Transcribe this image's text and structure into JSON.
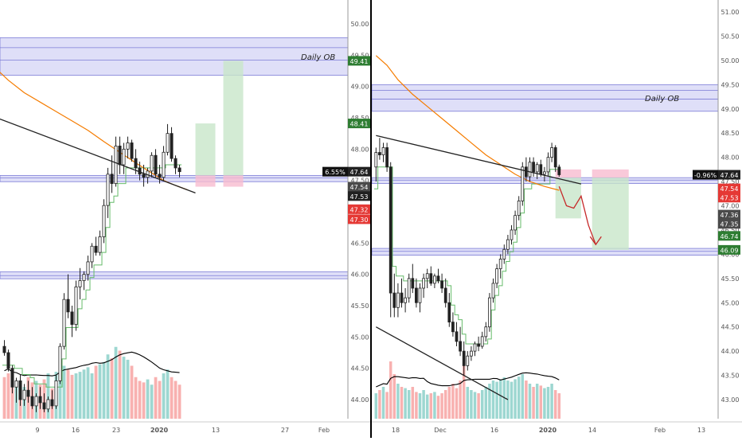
{
  "colors": {
    "up": "#26a69a",
    "down": "#ef5350",
    "ma_orange": "#f57c00",
    "trend_green": "#66bb6a",
    "zone_fill": "#c5c5f2",
    "zone_line": "#7b7bd6",
    "long_green": "#c8e6c9",
    "stop_red": "#f8bbd0",
    "tag_green": "#2e7d32",
    "tag_red": "#e53935",
    "tag_dark": "#212121",
    "tag_gray": "#4a4a4a"
  },
  "chart_data": [
    {
      "type": "candlestick",
      "title": "",
      "zone_label": "Daily OB",
      "y_axis": {
        "range": [
          43.7,
          50.4
        ],
        "ticks": [
          "50.00",
          "49.50",
          "49.00",
          "48.50",
          "48.00",
          "47.50",
          "47.00",
          "46.50",
          "46.00",
          "45.50",
          "45.00",
          "44.50",
          "44.00"
        ]
      },
      "x_axis": {
        "labels": [
          "9",
          "16",
          "23",
          "2020",
          "13",
          "27",
          "Feb"
        ]
      },
      "price_tags": [
        {
          "label": "49.41",
          "value": 49.41,
          "style": "green"
        },
        {
          "label": "48.41",
          "value": 48.41,
          "style": "green"
        },
        {
          "label": "6.55%",
          "value": 47.64,
          "style": "percent"
        },
        {
          "label": "47.64",
          "value": 47.64,
          "style": "dark"
        },
        {
          "label": "47.54",
          "value": 47.54,
          "style": "gray"
        },
        {
          "label": "47.53",
          "value": 47.53,
          "style": "dark"
        },
        {
          "label": "47.32",
          "value": 47.32,
          "style": "red"
        },
        {
          "label": "47.30",
          "value": 47.3,
          "style": "red"
        }
      ],
      "zones": [
        {
          "name": "daily-ob",
          "top": 49.78,
          "bottom": 49.18,
          "lines": [
            49.62,
            49.42
          ]
        },
        {
          "name": "support",
          "top": 47.58,
          "bottom": 47.48,
          "lines": [
            47.54
          ]
        },
        {
          "name": "lower",
          "top": 46.04,
          "bottom": 45.93,
          "lines": [
            45.98
          ]
        }
      ],
      "candles": [
        [
          44.85,
          44.95,
          44.7,
          44.75
        ],
        [
          44.75,
          44.8,
          44.45,
          44.5
        ],
        [
          44.5,
          44.55,
          44.1,
          44.2
        ],
        [
          44.2,
          44.35,
          43.95,
          44.3
        ],
        [
          44.3,
          44.4,
          43.9,
          44.0
        ],
        [
          44.0,
          44.25,
          43.9,
          44.15
        ],
        [
          44.15,
          44.3,
          43.95,
          44.05
        ],
        [
          44.05,
          44.2,
          43.85,
          43.9
        ],
        [
          43.9,
          44.1,
          43.8,
          44.05
        ],
        [
          44.05,
          44.2,
          43.85,
          43.95
        ],
        [
          43.95,
          44.1,
          43.8,
          43.85
        ],
        [
          43.85,
          44.05,
          43.8,
          44.0
        ],
        [
          44.0,
          44.15,
          43.85,
          43.9
        ],
        [
          43.9,
          44.4,
          43.85,
          44.3
        ],
        [
          44.3,
          44.9,
          44.25,
          44.85
        ],
        [
          44.85,
          45.7,
          44.8,
          45.6
        ],
        [
          45.6,
          46.0,
          45.3,
          45.4
        ],
        [
          45.4,
          45.5,
          45.0,
          45.2
        ],
        [
          45.2,
          45.9,
          45.1,
          45.8
        ],
        [
          45.8,
          46.1,
          45.6,
          45.9
        ],
        [
          45.9,
          46.05,
          45.75,
          46.0
        ],
        [
          46.0,
          46.3,
          45.9,
          46.2
        ],
        [
          46.2,
          46.5,
          46.1,
          46.45
        ],
        [
          46.45,
          46.6,
          46.3,
          46.35
        ],
        [
          46.35,
          46.7,
          46.3,
          46.6
        ],
        [
          46.6,
          47.2,
          46.5,
          47.1
        ],
        [
          47.1,
          47.7,
          46.9,
          47.6
        ],
        [
          47.6,
          47.9,
          47.3,
          47.45
        ],
        [
          47.45,
          48.2,
          47.4,
          48.05
        ],
        [
          48.05,
          48.2,
          47.6,
          47.75
        ],
        [
          47.75,
          48.1,
          47.6,
          48.0
        ],
        [
          48.0,
          48.2,
          47.85,
          48.1
        ],
        [
          48.1,
          48.15,
          47.8,
          47.85
        ],
        [
          47.85,
          48.0,
          47.6,
          47.7
        ],
        [
          47.7,
          47.8,
          47.5,
          47.6
        ],
        [
          47.6,
          47.75,
          47.4,
          47.55
        ],
        [
          47.55,
          47.7,
          47.45,
          47.65
        ],
        [
          47.65,
          47.95,
          47.55,
          47.9
        ],
        [
          47.9,
          48.0,
          47.55,
          47.6
        ],
        [
          47.6,
          47.75,
          47.45,
          47.55
        ],
        [
          47.55,
          48.05,
          47.5,
          47.95
        ],
        [
          47.95,
          48.4,
          47.9,
          48.25
        ],
        [
          48.25,
          48.35,
          47.8,
          47.85
        ],
        [
          47.85,
          47.9,
          47.6,
          47.7
        ],
        [
          47.7,
          47.75,
          47.55,
          47.64
        ]
      ],
      "volume": [
        0.55,
        0.6,
        0.45,
        0.5,
        0.4,
        0.42,
        0.55,
        0.48,
        0.5,
        0.45,
        0.52,
        0.6,
        0.4,
        0.62,
        0.8,
        0.7,
        0.65,
        0.58,
        0.6,
        0.62,
        0.65,
        0.68,
        0.6,
        0.7,
        0.72,
        0.75,
        0.85,
        0.8,
        0.95,
        0.9,
        0.82,
        0.78,
        0.7,
        0.55,
        0.5,
        0.48,
        0.52,
        0.45,
        0.55,
        0.5,
        0.6,
        0.65,
        0.55,
        0.5,
        0.45
      ],
      "ma": [
        [
          -4,
          49.4
        ],
        [
          1,
          49.1
        ],
        [
          5,
          48.9
        ],
        [
          9,
          48.75
        ],
        [
          13,
          48.6
        ],
        [
          17,
          48.45
        ],
        [
          21,
          48.3
        ],
        [
          25,
          48.12
        ],
        [
          29,
          47.95
        ],
        [
          33,
          47.78
        ],
        [
          37,
          47.62
        ],
        [
          40,
          47.5
        ],
        [
          43,
          47.42
        ],
        [
          46,
          47.35
        ]
      ],
      "trendline": [
        [
          -4,
          48.55
        ],
        [
          48,
          47.3
        ]
      ],
      "long_setups": [
        {
          "x1": 48,
          "x2": 53,
          "entry": 47.58,
          "target": 48.41,
          "stop": 47.4
        },
        {
          "x1": 55,
          "x2": 60,
          "entry": 47.58,
          "target": 49.41,
          "stop": 47.4
        }
      ]
    },
    {
      "type": "candlestick",
      "title": "",
      "zone_label": "Daily OB",
      "y_axis": {
        "range": [
          43.0,
          51.2
        ],
        "ticks": [
          "51.00",
          "50.50",
          "50.00",
          "49.50",
          "49.00",
          "48.50",
          "48.00",
          "47.50",
          "47.00",
          "46.50",
          "46.00",
          "45.50",
          "45.00",
          "44.50",
          "44.00",
          "43.50",
          "43.00"
        ]
      },
      "x_axis": {
        "labels": [
          "18",
          "Dec",
          "16",
          "2020",
          "14",
          "Feb",
          "13"
        ]
      },
      "price_tags": [
        {
          "label": "-0.96%",
          "value": 47.64,
          "style": "percent"
        },
        {
          "label": "47.64",
          "value": 47.64,
          "style": "dark"
        },
        {
          "label": "47.54",
          "value": 47.54,
          "style": "red"
        },
        {
          "label": "47.53",
          "value": 47.53,
          "style": "red"
        },
        {
          "label": "47.36",
          "value": 47.36,
          "style": "gray"
        },
        {
          "label": "47.35",
          "value": 47.35,
          "style": "gray"
        },
        {
          "label": "46.74",
          "value": 46.74,
          "style": "green"
        },
        {
          "label": "46.09",
          "value": 46.09,
          "style": "green"
        }
      ],
      "zones": [
        {
          "name": "daily-ob",
          "top": 49.5,
          "bottom": 48.95,
          "lines": [
            49.38,
            49.2
          ]
        },
        {
          "name": "support",
          "top": 47.58,
          "bottom": 47.46,
          "lines": [
            47.53
          ]
        },
        {
          "name": "lower",
          "top": 46.12,
          "bottom": 45.98,
          "lines": [
            46.06
          ]
        }
      ],
      "candles": [
        [
          47.8,
          48.2,
          47.5,
          48.1
        ],
        [
          48.1,
          48.4,
          47.95,
          48.05
        ],
        [
          48.05,
          48.3,
          47.9,
          48.2
        ],
        [
          48.2,
          48.3,
          47.7,
          47.8
        ],
        [
          47.8,
          47.9,
          44.7,
          45.2
        ],
        [
          45.2,
          45.6,
          44.7,
          44.9
        ],
        [
          44.9,
          45.4,
          44.7,
          45.2
        ],
        [
          45.2,
          45.5,
          44.9,
          45.0
        ],
        [
          45.0,
          45.3,
          44.8,
          45.1
        ],
        [
          45.1,
          45.6,
          45.0,
          45.5
        ],
        [
          45.5,
          45.8,
          45.2,
          45.3
        ],
        [
          45.3,
          45.5,
          44.9,
          45.0
        ],
        [
          45.0,
          45.4,
          44.8,
          45.3
        ],
        [
          45.3,
          45.6,
          45.1,
          45.5
        ],
        [
          45.5,
          45.7,
          45.3,
          45.6
        ],
        [
          45.6,
          45.75,
          45.35,
          45.4
        ],
        [
          45.4,
          45.6,
          45.3,
          45.55
        ],
        [
          45.55,
          45.7,
          45.4,
          45.45
        ],
        [
          45.45,
          45.6,
          45.2,
          45.3
        ],
        [
          45.3,
          45.5,
          44.9,
          45.0
        ],
        [
          45.0,
          45.2,
          44.5,
          44.6
        ],
        [
          44.6,
          44.8,
          44.3,
          44.4
        ],
        [
          44.4,
          44.6,
          44.1,
          44.2
        ],
        [
          44.2,
          44.5,
          43.9,
          44.0
        ],
        [
          44.0,
          44.2,
          43.5,
          43.7
        ],
        [
          43.7,
          44.0,
          43.6,
          43.9
        ],
        [
          43.9,
          44.1,
          43.8,
          44.0
        ],
        [
          44.0,
          44.2,
          43.9,
          44.15
        ],
        [
          44.15,
          44.3,
          44.0,
          44.1
        ],
        [
          44.1,
          44.4,
          44.05,
          44.3
        ],
        [
          44.3,
          44.6,
          44.2,
          44.5
        ],
        [
          44.5,
          45.2,
          44.4,
          45.1
        ],
        [
          45.1,
          45.5,
          45.0,
          45.4
        ],
        [
          45.4,
          45.8,
          45.3,
          45.7
        ],
        [
          45.7,
          46.0,
          45.5,
          45.9
        ],
        [
          45.9,
          46.2,
          45.8,
          46.1
        ],
        [
          46.1,
          46.4,
          46.0,
          46.3
        ],
        [
          46.3,
          46.6,
          46.2,
          46.5
        ],
        [
          46.5,
          46.9,
          46.4,
          46.8
        ],
        [
          46.8,
          47.2,
          46.7,
          47.1
        ],
        [
          47.1,
          47.9,
          47.0,
          47.8
        ],
        [
          47.8,
          48.0,
          47.5,
          47.6
        ],
        [
          47.6,
          48.0,
          47.5,
          47.9
        ],
        [
          47.9,
          48.0,
          47.6,
          47.7
        ],
        [
          47.7,
          47.9,
          47.55,
          47.85
        ],
        [
          47.85,
          47.95,
          47.6,
          47.65
        ],
        [
          47.65,
          47.8,
          47.5,
          47.7
        ],
        [
          47.7,
          48.1,
          47.6,
          48.0
        ],
        [
          48.0,
          48.3,
          47.9,
          48.2
        ],
        [
          48.2,
          48.25,
          47.7,
          47.8
        ],
        [
          47.8,
          47.85,
          47.6,
          47.64
        ]
      ],
      "volume": [
        0.4,
        0.45,
        0.5,
        0.42,
        0.9,
        0.7,
        0.55,
        0.5,
        0.48,
        0.45,
        0.5,
        0.42,
        0.4,
        0.45,
        0.38,
        0.4,
        0.42,
        0.36,
        0.4,
        0.45,
        0.5,
        0.55,
        0.48,
        0.6,
        0.85,
        0.5,
        0.45,
        0.42,
        0.4,
        0.45,
        0.5,
        0.55,
        0.6,
        0.58,
        0.62,
        0.65,
        0.6,
        0.58,
        0.62,
        0.66,
        0.7,
        0.6,
        0.55,
        0.5,
        0.55,
        0.52,
        0.48,
        0.5,
        0.55,
        0.45,
        0.4
      ],
      "ma": [
        [
          0,
          50.1
        ],
        [
          3,
          49.9
        ],
        [
          6,
          49.6
        ],
        [
          10,
          49.3
        ],
        [
          14,
          49.05
        ],
        [
          18,
          48.8
        ],
        [
          22,
          48.55
        ],
        [
          26,
          48.3
        ],
        [
          30,
          48.05
        ],
        [
          34,
          47.85
        ],
        [
          38,
          47.65
        ],
        [
          42,
          47.5
        ],
        [
          46,
          47.4
        ],
        [
          50,
          47.32
        ]
      ],
      "trendline": [
        [
          0,
          48.45
        ],
        [
          56,
          47.45
        ]
      ],
      "lower_trendline": [
        [
          0,
          44.5
        ],
        [
          36,
          43.0
        ]
      ],
      "short_setups": [
        {
          "x1": 49,
          "x2": 56,
          "entry": 47.58,
          "target": 46.74,
          "stop": 47.75
        },
        {
          "x1": 59,
          "x2": 69,
          "entry": 47.58,
          "target": 46.09,
          "stop": 47.75
        }
      ],
      "projection": [
        [
          50,
          47.4
        ],
        [
          52,
          47.0
        ],
        [
          54,
          46.95
        ],
        [
          56,
          47.2
        ],
        [
          58,
          46.6
        ],
        [
          60,
          46.2
        ]
      ]
    }
  ]
}
